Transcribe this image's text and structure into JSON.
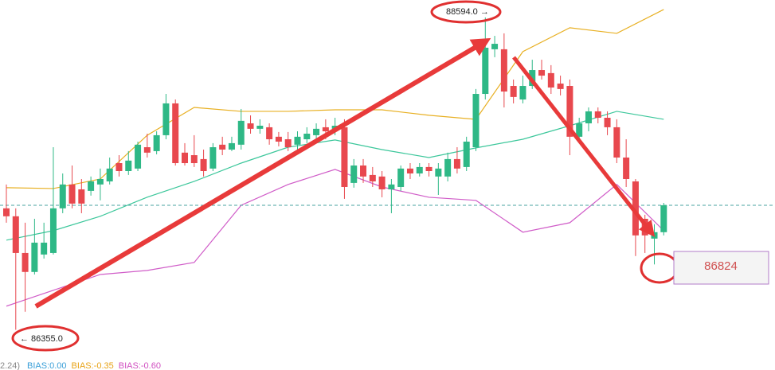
{
  "chart_data": {
    "type": "candlestick",
    "up_color": "#2eb886",
    "down_color": "#e8484e",
    "ylim": [
      86113,
      88719
    ],
    "open": [
      87226,
      87169,
      86906,
      86770,
      86895,
      86906,
      87226,
      87397,
      87362,
      87351,
      87397,
      87419,
      87550,
      87493,
      87511,
      87664,
      87636,
      87750,
      87978,
      87625,
      87607,
      87579,
      87511,
      87682,
      87647,
      87682,
      87835,
      87796,
      87807,
      87739,
      87721,
      87682,
      87721,
      87750,
      87807,
      87796,
      87807,
      87408,
      87533,
      87465,
      87454,
      87362,
      87379,
      87511,
      87476,
      87522,
      87454,
      87454,
      87579,
      87522,
      87664,
      88046,
      88366,
      88366,
      88103,
      88006,
      88103,
      88217,
      88195,
      88120,
      88103,
      87739,
      87835,
      87921,
      87875,
      87807,
      87590,
      87419,
      87151,
      87009,
      87055
    ],
    "high": [
      87397,
      87226,
      87123,
      87151,
      87123,
      87664,
      87476,
      87533,
      87436,
      87454,
      87511,
      87590,
      87607,
      87636,
      87704,
      87761,
      87778,
      88046,
      88006,
      87693,
      87750,
      87647,
      87693,
      87739,
      87739,
      87938,
      87892,
      87864,
      87835,
      87773,
      87773,
      87778,
      87807,
      87835,
      87864,
      87875,
      87864,
      87579,
      87579,
      87522,
      87493,
      87436,
      87533,
      87550,
      87550,
      87550,
      87550,
      87625,
      87664,
      87739,
      88081,
      88594,
      88462,
      88480,
      88149,
      88177,
      88291,
      88291,
      88252,
      88177,
      88149,
      87875,
      87949,
      87949,
      87921,
      87864,
      87721,
      87436,
      87180,
      87112,
      87265
    ],
    "low": [
      87123,
      86355,
      86485,
      86752,
      86866,
      86895,
      87191,
      87226,
      87191,
      87317,
      87283,
      87397,
      87454,
      87465,
      87493,
      87590,
      87613,
      87721,
      87533,
      87533,
      87522,
      87454,
      87493,
      87607,
      87636,
      87647,
      87761,
      87761,
      87682,
      87670,
      87636,
      87647,
      87693,
      87704,
      87721,
      87750,
      87294,
      87374,
      87408,
      87379,
      87305,
      87191,
      87351,
      87436,
      87454,
      87454,
      87322,
      87419,
      87476,
      87493,
      87636,
      88006,
      88309,
      87949,
      87978,
      87978,
      88081,
      88149,
      88046,
      88035,
      87607,
      87704,
      87778,
      87835,
      87750,
      87550,
      87379,
      86884,
      86906,
      86824,
      87032
    ],
    "close": [
      87169,
      86906,
      86770,
      86980,
      86980,
      87226,
      87397,
      87260,
      87260,
      87419,
      87436,
      87511,
      87493,
      87568,
      87682,
      87625,
      87750,
      87978,
      87550,
      87550,
      87550,
      87493,
      87664,
      87647,
      87693,
      87853,
      87796,
      87818,
      87721,
      87704,
      87664,
      87739,
      87761,
      87796,
      87778,
      87818,
      87379,
      87533,
      87454,
      87419,
      87362,
      87397,
      87511,
      87476,
      87522,
      87493,
      87511,
      87579,
      87511,
      87704,
      88046,
      88377,
      88405,
      88063,
      88024,
      88103,
      88217,
      88177,
      88092,
      88081,
      87739,
      87835,
      87921,
      87875,
      87807,
      87590,
      87436,
      87032,
      87032,
      87055,
      87248
    ],
    "band_x": [
      0,
      5,
      10,
      15,
      20,
      25,
      30,
      35,
      40,
      45,
      50,
      55,
      60,
      65,
      70
    ],
    "series": [
      {
        "color": "#e8b023",
        "values": [
          87374,
          87368,
          87436,
          87750,
          87949,
          87921,
          87921,
          87932,
          87932,
          87893,
          87864,
          88349,
          88520,
          88480,
          88651
        ]
      },
      {
        "color": "#3cc79b",
        "values": [
          86998,
          87066,
          87169,
          87306,
          87419,
          87550,
          87664,
          87716,
          87647,
          87590,
          87659,
          87721,
          87818,
          87921,
          87864
        ]
      },
      {
        "color": "#d05cc8",
        "values": [
          86525,
          86639,
          86752,
          86781,
          86838,
          87248,
          87397,
          87505,
          87379,
          87305,
          87283,
          87055,
          87123,
          87397,
          87066
        ]
      }
    ],
    "annotations": [
      "88594.0 →",
      "← 86355.0",
      "86824"
    ],
    "indicator_prefix": "2.24)",
    "indicators": [
      {
        "label": "BIAS:0.00",
        "color": "#3a9fd8"
      },
      {
        "label": "BIAS:-0.35",
        "color": "#e8a317"
      },
      {
        "label": "BIAS:-0.60",
        "color": "#d04fc0"
      }
    ]
  }
}
